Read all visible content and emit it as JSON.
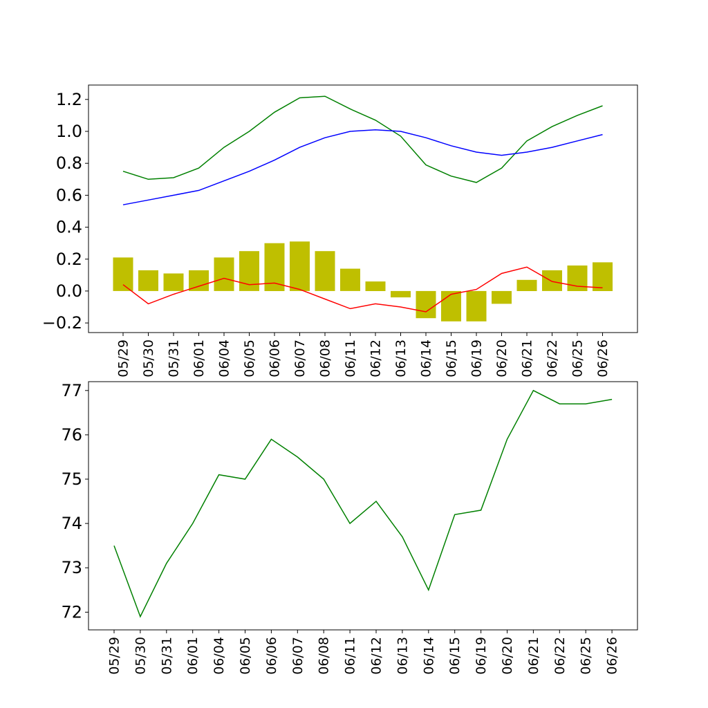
{
  "chart_data": [
    {
      "type": "bar+line",
      "title": "",
      "xlabel": "",
      "ylabel": "",
      "categories": [
        "05/29",
        "05/30",
        "05/31",
        "06/01",
        "06/04",
        "06/05",
        "06/06",
        "06/07",
        "06/08",
        "06/11",
        "06/12",
        "06/13",
        "06/14",
        "06/15",
        "06/19",
        "06/20",
        "06/21",
        "06/22",
        "06/25",
        "06/26"
      ],
      "ylim": [
        -0.26,
        1.29
      ],
      "yticks": [
        -0.2,
        0.0,
        0.2,
        0.4,
        0.6,
        0.8,
        1.0,
        1.2
      ],
      "ytick_labels": [
        "−0.2",
        "0.0",
        "0.2",
        "0.4",
        "0.6",
        "0.8",
        "1.0",
        "1.2"
      ],
      "grid": false,
      "series": [
        {
          "kind": "bar",
          "color": "#bfbf00",
          "values": [
            0.21,
            0.13,
            0.11,
            0.13,
            0.21,
            0.25,
            0.3,
            0.31,
            0.25,
            0.14,
            0.06,
            -0.04,
            -0.17,
            -0.19,
            -0.19,
            -0.08,
            0.07,
            0.13,
            0.16,
            0.18
          ]
        },
        {
          "kind": "line",
          "color": "#008000",
          "values": [
            0.75,
            0.7,
            0.71,
            0.77,
            0.9,
            1.0,
            1.12,
            1.21,
            1.22,
            1.14,
            1.07,
            0.97,
            0.79,
            0.72,
            0.68,
            0.77,
            0.94,
            1.03,
            1.1,
            1.16
          ]
        },
        {
          "kind": "line",
          "color": "#0000ff",
          "values": [
            0.54,
            0.57,
            0.6,
            0.63,
            0.69,
            0.75,
            0.82,
            0.9,
            0.96,
            1.0,
            1.01,
            1.0,
            0.96,
            0.91,
            0.87,
            0.85,
            0.87,
            0.9,
            0.94,
            0.98
          ]
        },
        {
          "kind": "line",
          "color": "#ff0000",
          "values": [
            0.04,
            -0.08,
            -0.02,
            0.03,
            0.08,
            0.04,
            0.05,
            0.01,
            -0.05,
            -0.11,
            -0.08,
            -0.1,
            -0.13,
            -0.02,
            0.01,
            0.11,
            0.15,
            0.06,
            0.03,
            0.02
          ]
        }
      ]
    },
    {
      "type": "line",
      "title": "",
      "xlabel": "",
      "ylabel": "",
      "categories": [
        "05/29",
        "05/30",
        "05/31",
        "06/01",
        "06/04",
        "06/05",
        "06/06",
        "06/07",
        "06/08",
        "06/11",
        "06/12",
        "06/13",
        "06/14",
        "06/15",
        "06/19",
        "06/20",
        "06/21",
        "06/22",
        "06/25",
        "06/26"
      ],
      "ylim": [
        71.6,
        77.2
      ],
      "yticks": [
        72,
        73,
        74,
        75,
        76,
        77
      ],
      "ytick_labels": [
        "72",
        "73",
        "74",
        "75",
        "76",
        "77"
      ],
      "grid": false,
      "series": [
        {
          "kind": "line",
          "color": "#008000",
          "values": [
            73.5,
            71.9,
            73.1,
            74.0,
            75.1,
            75.0,
            75.9,
            75.5,
            75.0,
            74.0,
            74.5,
            73.7,
            72.5,
            74.2,
            74.3,
            75.9,
            77.0,
            76.7,
            76.7,
            76.8
          ]
        }
      ]
    }
  ]
}
